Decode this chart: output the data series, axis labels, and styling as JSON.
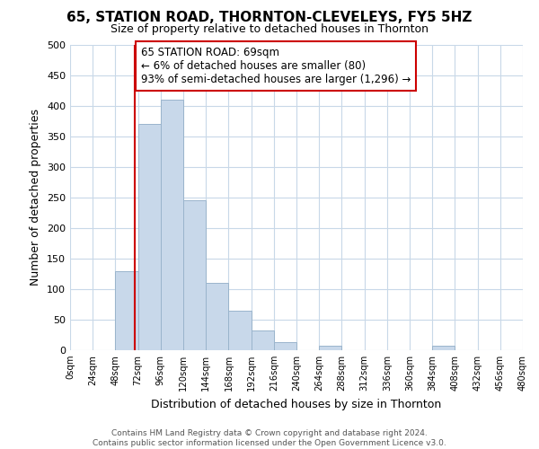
{
  "title": "65, STATION ROAD, THORNTON-CLEVELEYS, FY5 5HZ",
  "subtitle": "Size of property relative to detached houses in Thornton",
  "xlabel": "Distribution of detached houses by size in Thornton",
  "ylabel": "Number of detached properties",
  "bin_edges": [
    0,
    24,
    48,
    72,
    96,
    120,
    144,
    168,
    192,
    216,
    240,
    264,
    288,
    312,
    336,
    360,
    384,
    408,
    432,
    456,
    480
  ],
  "bar_heights": [
    0,
    0,
    130,
    370,
    410,
    245,
    110,
    65,
    33,
    13,
    0,
    7,
    0,
    0,
    0,
    0,
    7,
    0,
    0,
    0
  ],
  "bar_color": "#c8d8ea",
  "bar_edge_color": "#9ab4cc",
  "property_line_x": 69,
  "property_line_color": "#cc0000",
  "annotation_title": "65 STATION ROAD: 69sqm",
  "annotation_line1": "← 6% of detached houses are smaller (80)",
  "annotation_line2": "93% of semi-detached houses are larger (1,296) →",
  "annotation_box_facecolor": "#ffffff",
  "annotation_box_edgecolor": "#cc0000",
  "ylim": [
    0,
    500
  ],
  "xlim": [
    0,
    480
  ],
  "tick_labels": [
    "0sqm",
    "24sqm",
    "48sqm",
    "72sqm",
    "96sqm",
    "120sqm",
    "144sqm",
    "168sqm",
    "192sqm",
    "216sqm",
    "240sqm",
    "264sqm",
    "288sqm",
    "312sqm",
    "336sqm",
    "360sqm",
    "384sqm",
    "408sqm",
    "432sqm",
    "456sqm",
    "480sqm"
  ],
  "yticks": [
    0,
    50,
    100,
    150,
    200,
    250,
    300,
    350,
    400,
    450,
    500
  ],
  "footer_line1": "Contains HM Land Registry data © Crown copyright and database right 2024.",
  "footer_line2": "Contains public sector information licensed under the Open Government Licence v3.0.",
  "background_color": "#ffffff",
  "grid_color": "#c8d8e8",
  "title_fontsize": 11,
  "subtitle_fontsize": 9
}
